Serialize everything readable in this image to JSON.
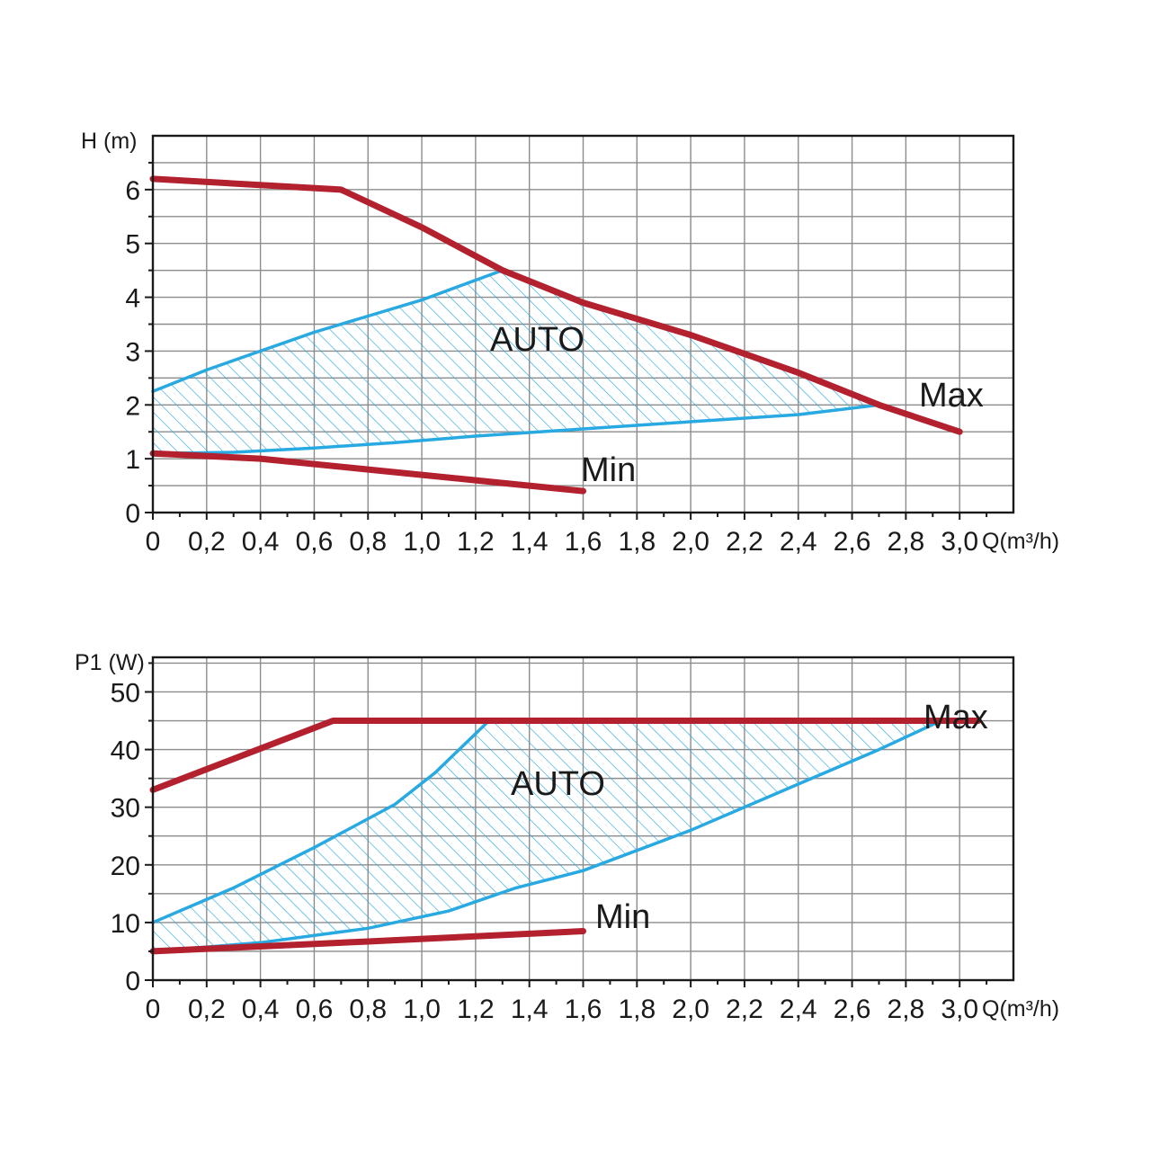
{
  "chart_data": [
    {
      "type": "line",
      "ylabel": "H (m)",
      "xlabel": "Q(m³/h)",
      "xlim": [
        0,
        3.2
      ],
      "ylim": [
        0,
        7
      ],
      "x_ticks": [
        "0",
        "0,2",
        "0,4",
        "0,6",
        "0,8",
        "1,0",
        "1,2",
        "1,4",
        "1,6",
        "1,8",
        "2,0",
        "2,2",
        "2,4",
        "2,6",
        "2,8",
        "3,0"
      ],
      "y_ticks": [
        "0",
        "1",
        "2",
        "3",
        "4",
        "5",
        "6"
      ],
      "grid": true,
      "series": [
        {
          "name": "Max",
          "color": "#b3202e",
          "points": [
            [
              0,
              6.2
            ],
            [
              0.7,
              6.0
            ],
            [
              1.0,
              5.3
            ],
            [
              1.3,
              4.5
            ],
            [
              1.6,
              3.9
            ],
            [
              2.0,
              3.3
            ],
            [
              2.4,
              2.6
            ],
            [
              2.7,
              2.0
            ],
            [
              3.0,
              1.5
            ]
          ]
        },
        {
          "name": "Min",
          "color": "#b3202e",
          "points": [
            [
              0,
              1.1
            ],
            [
              0.4,
              1.0
            ],
            [
              0.8,
              0.8
            ],
            [
              1.2,
              0.6
            ],
            [
              1.6,
              0.4
            ]
          ]
        }
      ],
      "auto_region": {
        "label": "AUTO",
        "color": "#29a9e1",
        "upper": [
          [
            0,
            2.25
          ],
          [
            0.2,
            2.65
          ],
          [
            0.4,
            3.0
          ],
          [
            0.6,
            3.35
          ],
          [
            0.8,
            3.65
          ],
          [
            1.0,
            3.95
          ],
          [
            1.3,
            4.5
          ]
        ],
        "lower": [
          [
            0,
            1.1
          ],
          [
            0.3,
            1.12
          ],
          [
            0.6,
            1.2
          ],
          [
            0.9,
            1.3
          ],
          [
            1.2,
            1.42
          ],
          [
            1.5,
            1.52
          ],
          [
            1.8,
            1.62
          ],
          [
            2.1,
            1.72
          ],
          [
            2.4,
            1.82
          ],
          [
            2.7,
            2.0
          ]
        ]
      },
      "labels": {
        "max": "Max",
        "min": "Min",
        "auto": "AUTO"
      }
    },
    {
      "type": "line",
      "ylabel": "P1 (W)",
      "xlabel": "Q(m³/h)",
      "xlim": [
        0,
        3.2
      ],
      "ylim": [
        0,
        56
      ],
      "x_ticks": [
        "0",
        "0,2",
        "0,4",
        "0,6",
        "0,8",
        "1,0",
        "1,2",
        "1,4",
        "1,6",
        "1,8",
        "2,0",
        "2,2",
        "2,4",
        "2,6",
        "2,8",
        "3,0"
      ],
      "y_ticks": [
        "0",
        "10",
        "20",
        "30",
        "40",
        "50"
      ],
      "grid": true,
      "series": [
        {
          "name": "Max",
          "color": "#b3202e",
          "points": [
            [
              0,
              33
            ],
            [
              0.67,
              45
            ],
            [
              3.07,
              45
            ]
          ]
        },
        {
          "name": "Min",
          "color": "#b3202e",
          "points": [
            [
              0,
              5
            ],
            [
              0.8,
              6.7
            ],
            [
              1.6,
              8.5
            ]
          ]
        }
      ],
      "auto_region": {
        "label": "AUTO",
        "color": "#29a9e1",
        "upper": [
          [
            0,
            10
          ],
          [
            0.3,
            16
          ],
          [
            0.6,
            23
          ],
          [
            0.9,
            30.5
          ],
          [
            1.05,
            36
          ],
          [
            1.25,
            45
          ]
        ],
        "lower": [
          [
            0,
            5
          ],
          [
            0.4,
            6.5
          ],
          [
            0.8,
            9
          ],
          [
            1.1,
            12
          ],
          [
            1.35,
            16
          ],
          [
            1.6,
            19
          ],
          [
            2.0,
            26
          ],
          [
            2.4,
            34
          ],
          [
            2.7,
            40
          ],
          [
            2.93,
            45
          ]
        ]
      },
      "labels": {
        "max": "Max",
        "min": "Min",
        "auto": "AUTO"
      }
    }
  ]
}
